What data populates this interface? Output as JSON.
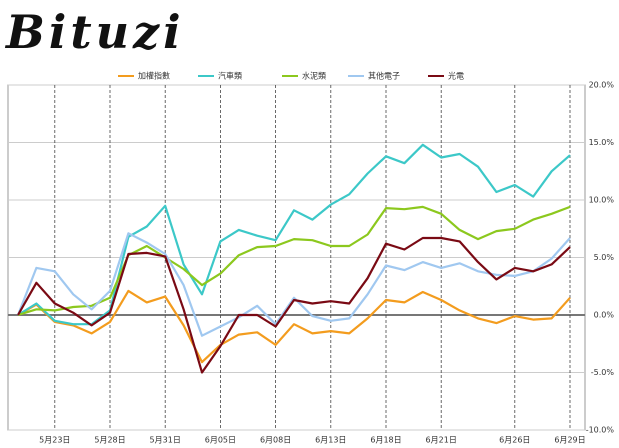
{
  "logo": "Bituzi",
  "chart_data": {
    "type": "line",
    "categories": [
      null,
      null,
      "5月23日",
      null,
      null,
      "5月28日",
      null,
      null,
      "5月31日",
      null,
      null,
      "6月05日",
      null,
      null,
      "6月08日",
      null,
      null,
      "6月13日",
      null,
      null,
      "6月18日",
      null,
      null,
      "6月21日",
      null,
      null,
      null,
      "6月26日",
      null,
      null,
      "6月29日"
    ],
    "series": [
      {
        "name": "加權指數",
        "color": "#f39c1e",
        "values": [
          0,
          0.9,
          -0.6,
          -0.9,
          -1.6,
          -0.6,
          2.1,
          1.1,
          1.6,
          -0.9,
          -4.1,
          -2.6,
          -1.7,
          -1.5,
          -2.6,
          -0.8,
          -1.6,
          -1.4,
          -1.6,
          -0.3,
          1.3,
          1.1,
          2.0,
          1.3,
          0.4,
          -0.3,
          -0.7,
          -0.1,
          -0.4,
          -0.3,
          1.5
        ]
      },
      {
        "name": "汽車類",
        "color": "#3cc8c8",
        "values": [
          0,
          1.0,
          -0.5,
          -0.8,
          -0.8,
          0.4,
          6.8,
          7.7,
          9.5,
          4.4,
          1.8,
          6.4,
          7.4,
          6.9,
          6.5,
          9.1,
          8.3,
          9.6,
          10.5,
          12.3,
          13.8,
          13.2,
          14.8,
          13.7,
          14.0,
          12.9,
          10.7,
          11.3,
          10.3,
          12.5,
          13.9
        ]
      },
      {
        "name": "水泥類",
        "color": "#8cc81e",
        "values": [
          0,
          0.5,
          0.4,
          0.7,
          0.8,
          1.5,
          5.2,
          6.0,
          5.0,
          4.0,
          2.6,
          3.6,
          5.2,
          5.9,
          6.0,
          6.6,
          6.5,
          6.0,
          6.0,
          7.0,
          9.3,
          9.2,
          9.4,
          8.8,
          7.4,
          6.6,
          7.3,
          7.5,
          8.3,
          8.8,
          9.4
        ]
      },
      {
        "name": "其他電子",
        "color": "#a0c8f0",
        "values": [
          0,
          4.1,
          3.8,
          1.8,
          0.5,
          2.1,
          7.1,
          6.3,
          5.3,
          2.6,
          -1.8,
          -1.0,
          -0.2,
          0.8,
          -0.8,
          1.5,
          -0.1,
          -0.5,
          -0.3,
          1.8,
          4.3,
          3.9,
          4.6,
          4.1,
          4.5,
          3.8,
          3.5,
          3.4,
          3.8,
          4.9,
          6.7
        ]
      },
      {
        "name": "光電",
        "color": "#7a0a14",
        "values": [
          0,
          2.8,
          1.0,
          0.2,
          -0.9,
          0.2,
          5.3,
          5.4,
          5.1,
          0.5,
          -5.0,
          -2.7,
          0,
          0,
          -1.0,
          1.3,
          1.0,
          1.2,
          1.0,
          3.2,
          6.2,
          5.7,
          6.7,
          6.7,
          6.4,
          4.6,
          3.1,
          4.1,
          3.8,
          4.4,
          5.9
        ]
      }
    ],
    "ylim": [
      -10,
      20
    ],
    "yticks": [
      {
        "value": -10,
        "label": "-10.0%"
      },
      {
        "value": -5,
        "label": "-5.0%"
      },
      {
        "value": 0,
        "label": "0.0%"
      },
      {
        "value": 5,
        "label": "5.0%"
      },
      {
        "value": 10,
        "label": "10.0%"
      },
      {
        "value": 15,
        "label": "15.0%"
      },
      {
        "value": 20,
        "label": "20.0%"
      }
    ],
    "grid": true,
    "legend": "top"
  }
}
